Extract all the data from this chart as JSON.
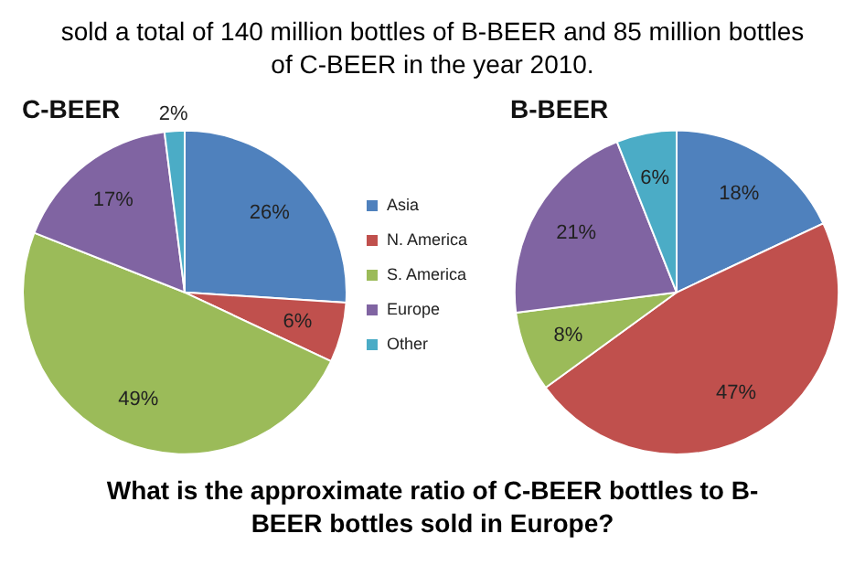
{
  "chart_data": [
    {
      "type": "pie",
      "title": "C-BEER",
      "categories": [
        "Asia",
        "N. America",
        "S. America",
        "Europe",
        "Other"
      ],
      "values": [
        26,
        6,
        49,
        17,
        2
      ],
      "value_labels": [
        "26%",
        "6%",
        "49%",
        "17%",
        "2%"
      ],
      "colors": [
        "#4f81bd",
        "#c0504d",
        "#9bbb59",
        "#8064a2",
        "#4bacc6"
      ],
      "legend": "right",
      "annotations": [
        "sold a total of 140 million bottles of B-BEER and 85 million bottles of C-BEER in the year 2010.",
        "What is the approximate ratio of C-BEER bottles to B-BEER bottles sold in Europe?"
      ]
    },
    {
      "type": "pie",
      "title": "B-BEER",
      "categories": [
        null,
        null,
        null,
        null,
        null
      ],
      "values": [
        18,
        47,
        8,
        21,
        6
      ],
      "value_labels": [
        "18%",
        "47%",
        "8%",
        "21%",
        "6%"
      ],
      "colors": [
        "#4f81bd",
        "#c0504d",
        "#9bbb59",
        "#8064a2",
        "#4bacc6"
      ]
    }
  ]
}
